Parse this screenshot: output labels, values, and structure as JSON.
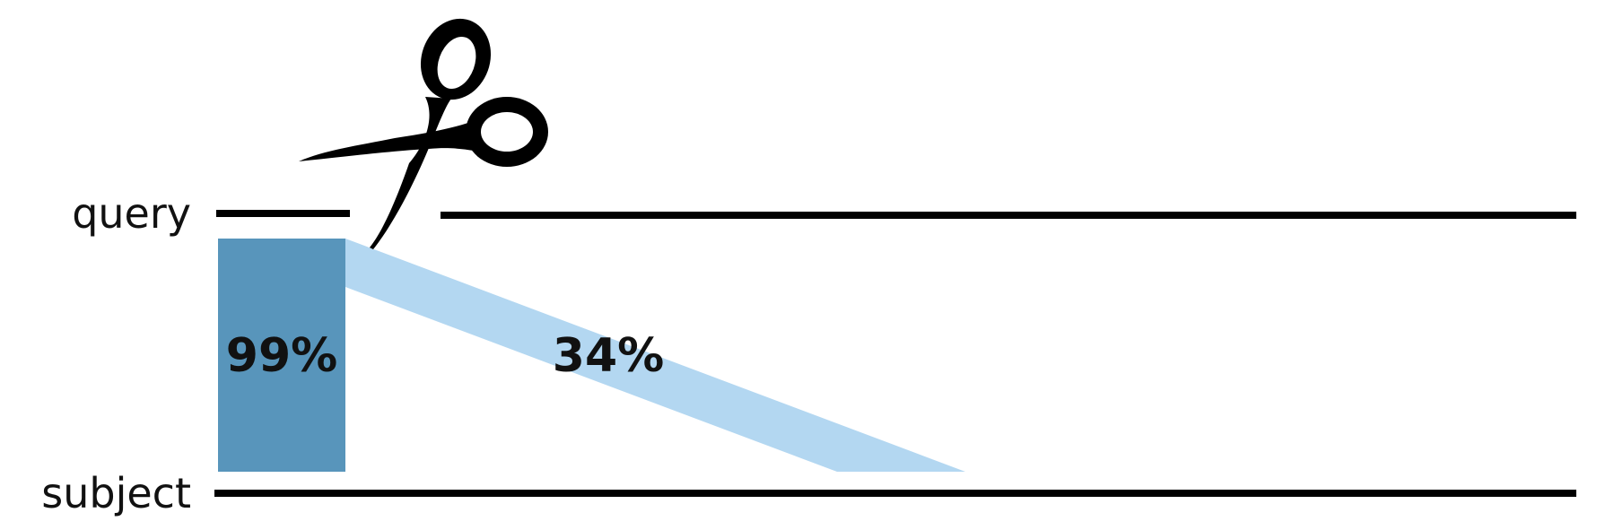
{
  "labels": {
    "query": "query",
    "subject": "subject"
  },
  "alignments": {
    "strong": {
      "identity_label": "99%",
      "color": "#5895bb"
    },
    "weak": {
      "identity_label": "34%",
      "color": "#b3d7f1"
    }
  },
  "icons": {
    "cut": "scissors-icon"
  },
  "colors": {
    "line": "#000000",
    "text": "#111111"
  }
}
